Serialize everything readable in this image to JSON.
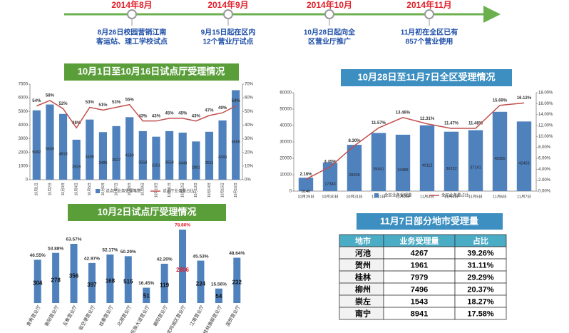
{
  "timeline": {
    "items": [
      {
        "date": "2014年8月",
        "lines": [
          "8月26日校园营销江南",
          "客运站、理工学校试点"
        ]
      },
      {
        "date": "2014年9月",
        "lines": [
          "9月15日起在区内",
          "12个营业厅试点"
        ]
      },
      {
        "date": "2014年10月",
        "lines": [
          "10月28日起向全",
          "区营业厅推广"
        ]
      },
      {
        "date": "2014年11月",
        "lines": [
          "11月初在全区已有",
          "857个营业使用"
        ]
      }
    ]
  },
  "chart_data": [
    {
      "type": "bar_line",
      "title": "10月1日至10月16日试点厅受理情况",
      "categories": [
        "10月1日",
        "10月2日",
        "10月3日",
        "10月4日",
        "10月5日",
        "10月6日",
        "10月7日",
        "10月8日",
        "10月9日",
        "10月10日",
        "10月11日",
        "10月12日",
        "10月13日",
        "10月14日",
        "10月15日",
        "10月16日"
      ],
      "series": [
        {
          "name": "试点厅业务受理笔数",
          "color": "#4f81bd",
          "values": [
            5082,
            5509,
            4818,
            2929,
            4406,
            3486,
            3927,
            4580,
            3558,
            3151,
            3558,
            3449,
            2801,
            3511,
            4343,
            6558
          ]
        },
        {
          "name": "试点厅业务量占比",
          "color": "#c0504d",
          "axis": "y2",
          "values": [
            54,
            58,
            52,
            38,
            53,
            51,
            53,
            55,
            43,
            43,
            45,
            45,
            43,
            47,
            49,
            54
          ],
          "value_labels": [
            "54%",
            "58%",
            "52%",
            "38%",
            "53%",
            "51%",
            "53%",
            "55%",
            "43%",
            "43%",
            "45%",
            "45%",
            "43%",
            "47%",
            "49%",
            "54%"
          ]
        }
      ],
      "ylim": [
        0,
        7000
      ],
      "yticks": [
        0,
        1000,
        2000,
        3000,
        4000,
        5000,
        6000,
        7000
      ],
      "y2lim": [
        0,
        70
      ],
      "y2ticks": [
        {
          "value": 0,
          "label": "0%"
        },
        {
          "value": 10,
          "label": "10%"
        },
        {
          "value": 20,
          "label": "20%"
        },
        {
          "value": 30,
          "label": "30%"
        },
        {
          "value": 40,
          "label": "40%"
        },
        {
          "value": 50,
          "label": "50%"
        },
        {
          "value": 60,
          "label": "60%"
        },
        {
          "value": 70,
          "label": "70%"
        }
      ]
    },
    {
      "type": "bar_line",
      "title": "10月28日至11月7日全区受理情况",
      "categories": [
        "10月29日",
        "10月30日",
        "10月31日",
        "11月1日",
        "11月2日",
        "11月3日",
        "11月4日",
        "11月5日",
        "11月6日",
        "11月7日"
      ],
      "series": [
        {
          "name": "全区业务受理量",
          "color": "#4f81bd",
          "values": [
            8146,
            17343,
            28206,
            35441,
            34388,
            40112,
            36222,
            37141,
            48355,
            42453
          ]
        },
        {
          "name": "全区业务量占比",
          "color": "#c0504d",
          "axis": "y2",
          "values": [
            2.16,
            4.45,
            8.3,
            11.57,
            13.46,
            12.31,
            11.47,
            11.48,
            15.69,
            16.12
          ],
          "value_labels": [
            "2.16%",
            "4.45%",
            "8.30%",
            "11.57%",
            "13.46%",
            "12.31%",
            "11.47%",
            "11.48%",
            "15.69%",
            "16.12%"
          ]
        }
      ],
      "ylim": [
        0,
        60000
      ],
      "yticks": [
        0,
        10000,
        20000,
        30000,
        40000,
        50000,
        60000
      ],
      "y2lim": [
        0,
        18
      ],
      "y2ticks": [
        {
          "value": 0,
          "label": "0.00%"
        },
        {
          "value": 2,
          "label": "2.00%"
        },
        {
          "value": 4,
          "label": "4.00%"
        },
        {
          "value": 6,
          "label": "6.00%"
        },
        {
          "value": 8,
          "label": "8.00%"
        },
        {
          "value": 10,
          "label": "10.00%"
        },
        {
          "value": 12,
          "label": "12.00%"
        },
        {
          "value": 14,
          "label": "14.00%"
        },
        {
          "value": 16,
          "label": "16.00%"
        },
        {
          "value": 18,
          "label": "18.00%"
        }
      ]
    },
    {
      "type": "bar",
      "title": "10月2日试点厅受理情况",
      "categories": [
        "青秀营业厅",
        "衡阳营业厅",
        "五象营业厅",
        "临空港营业厅",
        "桂春营业厅",
        "北湖营业厅",
        "民族大道营业厅",
        "朝阳营业厅",
        "武鸣城区营业厅",
        "江南营业厅",
        "桂林旗舰营业厅",
        "国贸营业厅"
      ],
      "values": [
        46.55,
        53.88,
        63.57,
        42.97,
        52.17,
        50.29,
        16.45,
        42.2,
        78.86,
        45.53,
        15.56,
        48.64
      ],
      "value_labels": [
        "46.55%",
        "53.88%",
        "63.57%",
        "42.97%",
        "52.17%",
        "50.29%",
        "16.45%",
        "42.20%",
        "78.86%",
        "45.53%",
        "15.56%",
        "48.64%"
      ],
      "counts": [
        304,
        278,
        356,
        397,
        168,
        515,
        51,
        119,
        2806,
        224,
        54,
        232
      ],
      "color": "#4f81bd"
    }
  ],
  "table": {
    "title": "11月7日部分地市受理量",
    "header": [
      "地市",
      "业务受理量",
      "占比"
    ],
    "rows": [
      [
        "河池",
        "4267",
        "39.26%"
      ],
      [
        "贺州",
        "1961",
        "31.11%"
      ],
      [
        "桂林",
        "7979",
        "29.29%"
      ],
      [
        "柳州",
        "7496",
        "20.37%"
      ],
      [
        "崇左",
        "1543",
        "18.27%"
      ],
      [
        "南宁",
        "8941",
        "17.58%"
      ]
    ]
  }
}
